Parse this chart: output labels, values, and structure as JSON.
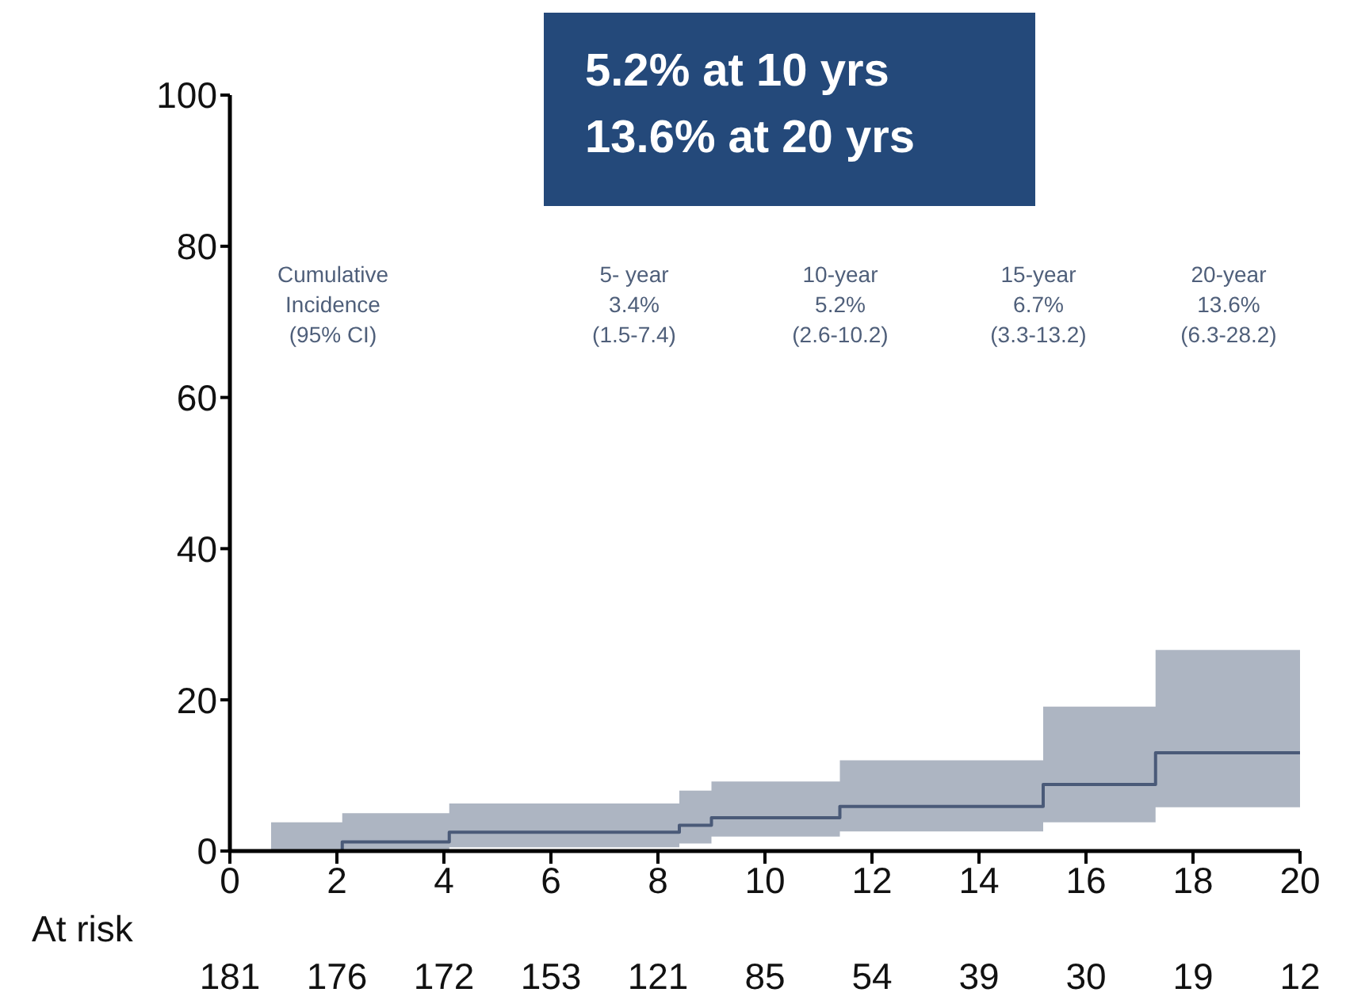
{
  "chart_data": {
    "type": "step",
    "x": [
      0.77,
      2.1,
      4.1,
      8.4,
      9.0,
      11.4,
      15.2,
      17.3,
      20
    ],
    "series": [
      {
        "color": "#4a5a78",
        "values": [
          0,
          1.2,
          2.5,
          3.4,
          4.4,
          5.9,
          8.8,
          13.0,
          13.0
        ],
        "lower": [
          0,
          0,
          0.5,
          1.0,
          1.9,
          2.6,
          3.8,
          5.8,
          5.8
        ],
        "upper": [
          3.8,
          5.0,
          6.3,
          8.0,
          9.2,
          12.0,
          19.1,
          26.6,
          26.6
        ]
      }
    ],
    "xlim": [
      0,
      20
    ],
    "xticks": [
      0,
      2,
      4,
      6,
      8,
      10,
      12,
      14,
      16,
      18,
      20
    ],
    "ylim": [
      0,
      100
    ],
    "yticks": [
      0,
      20,
      40,
      60,
      80,
      100
    ],
    "grid": false,
    "annotations": [
      "5.2% at 10 yrs\n13.6% at 20 yrs",
      "Cumulative\nIncidence\n(95% CI)",
      "5- year\n3.4%\n(1.5-7.4)",
      "10-year\n5.2%\n(2.6-10.2)",
      "15-year\n6.7%\n(3.3-13.2)",
      "20-year\n13.6%\n(6.3-28.2)",
      "At risk",
      "181",
      "176",
      "172",
      "153",
      "121",
      "85",
      "54",
      "39",
      "30",
      "19",
      "12"
    ]
  }
}
